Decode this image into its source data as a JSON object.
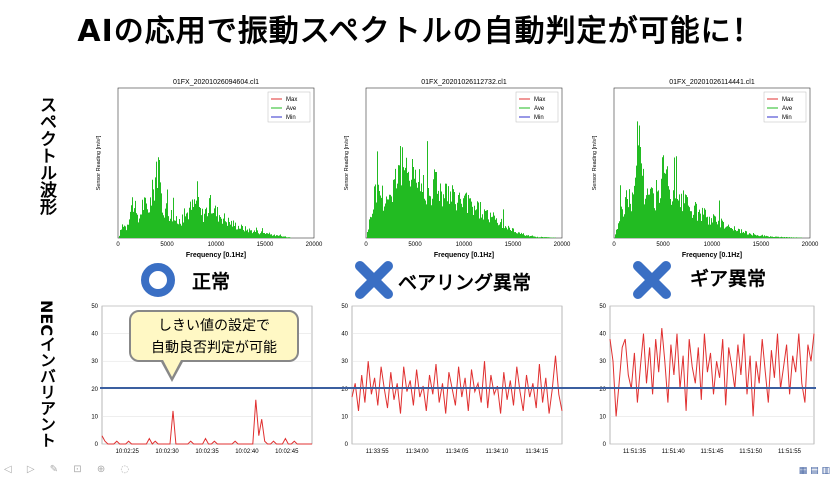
{
  "title": "AIの応用で振動スペクトルの自動判定が可能に！",
  "row_labels": {
    "spectrum": "スペクトル波形",
    "nec": "NECインバリアント"
  },
  "verdicts": [
    {
      "icon": "circle-icon",
      "label": "正常"
    },
    {
      "icon": "cross-icon",
      "label": "ベアリング異常"
    },
    {
      "icon": "cross-icon",
      "label": "ギア異常"
    }
  ],
  "callout": {
    "line1": "しきい値の設定で",
    "line2": "自動良否判定が可能"
  },
  "colors": {
    "max": "#e03030",
    "ave": "#22bb22",
    "min": "#3030cc",
    "nec_line": "#e03030",
    "threshold": "#3b5fa0",
    "icon": "#3a6fc4"
  },
  "spectrum_charts": [
    {
      "title": "01FX_20201026094604.cl1",
      "xlabel": "Frequency [0.1Hz]",
      "ylabel": "Sensor Reading [m/s²]",
      "xticks": [
        "0",
        "5000",
        "10000",
        "15000",
        "20000"
      ],
      "legend": [
        "Max",
        "Ave",
        "Min"
      ]
    },
    {
      "title": "01FX_20201026112732.cl1",
      "xlabel": "Frequency [0.1Hz]",
      "ylabel": "Sensor Reading [m/s²]",
      "xticks": [
        "0",
        "5000",
        "10000",
        "15000",
        "20000"
      ],
      "legend": [
        "Max",
        "Ave",
        "Min"
      ]
    },
    {
      "title": "01FX_20201026114441.cl1",
      "xlabel": "Frequency [0.1Hz]",
      "ylabel": "Sensor Reading [m/s²]",
      "xticks": [
        "0",
        "5000",
        "10000",
        "15000",
        "20000"
      ],
      "legend": [
        "Max",
        "Ave",
        "Min"
      ]
    }
  ],
  "chart_data": [
    {
      "type": "line",
      "title": "01FX_20201026094604.cl1",
      "xlabel": "Frequency [0.1Hz]",
      "ylabel": "Sensor Reading [m/s²]",
      "xlim": [
        0,
        20000
      ],
      "ylim": [
        0,
        1
      ],
      "x": [
        0,
        500,
        800,
        1000,
        1500,
        2000,
        2500,
        3000,
        3300,
        3600,
        3900,
        4200,
        4500,
        5000,
        5500,
        6000,
        6500,
        7000,
        7500,
        8000,
        8500,
        9000,
        9500,
        10000,
        10500,
        11000,
        11500,
        12000,
        13000,
        14000,
        15000,
        16000,
        17000,
        18000,
        20000
      ],
      "series": [
        {
          "name": "Ave",
          "values": [
            0,
            0.12,
            0.08,
            0.15,
            0.3,
            0.12,
            0.28,
            0.22,
            0.3,
            0.38,
            0.6,
            0.45,
            0.25,
            0.22,
            0.18,
            0.12,
            0.15,
            0.2,
            0.24,
            0.28,
            0.18,
            0.22,
            0.26,
            0.2,
            0.18,
            0.14,
            0.12,
            0.1,
            0.07,
            0.05,
            0.04,
            0.02,
            0.01,
            0,
            0
          ]
        }
      ]
    },
    {
      "type": "line",
      "title": "01FX_20201026112732.cl1",
      "xlabel": "Frequency [0.1Hz]",
      "ylabel": "Sensor Reading [m/s²]",
      "xlim": [
        0,
        20000
      ],
      "ylim": [
        0,
        1
      ],
      "x": [
        0,
        500,
        1000,
        1500,
        2000,
        2500,
        3000,
        3500,
        4000,
        4500,
        5000,
        5500,
        6000,
        6500,
        7000,
        7500,
        8000,
        9000,
        10000,
        11000,
        12000,
        13000,
        14000,
        15000,
        16000,
        17000,
        20000
      ],
      "series": [
        {
          "name": "Ave",
          "values": [
            0,
            0.2,
            0.4,
            0.35,
            0.3,
            0.35,
            0.5,
            0.6,
            0.45,
            0.62,
            0.5,
            0.42,
            0.4,
            0.35,
            0.45,
            0.38,
            0.35,
            0.3,
            0.28,
            0.25,
            0.2,
            0.15,
            0.1,
            0.06,
            0.03,
            0.01,
            0
          ]
        }
      ]
    },
    {
      "type": "line",
      "title": "01FX_20201026114441.cl1",
      "xlabel": "Frequency [0.1Hz]",
      "ylabel": "Sensor Reading [m/s²]",
      "xlim": [
        0,
        20000
      ],
      "ylim": [
        0,
        1
      ],
      "x": [
        0,
        500,
        1000,
        1500,
        2000,
        2500,
        3000,
        3500,
        4000,
        4500,
        5000,
        5500,
        6000,
        6500,
        7000,
        8000,
        9000,
        10000,
        11000,
        12000,
        13000,
        14000,
        15000,
        16000,
        20000
      ],
      "series": [
        {
          "name": "Ave",
          "values": [
            0,
            0.15,
            0.25,
            0.35,
            0.28,
            0.95,
            0.4,
            0.3,
            0.35,
            0.3,
            0.55,
            0.4,
            0.3,
            0.25,
            0.28,
            0.22,
            0.18,
            0.15,
            0.12,
            0.08,
            0.05,
            0.03,
            0.02,
            0.01,
            0
          ]
        }
      ]
    },
    {
      "type": "line",
      "ylim": [
        0,
        50
      ],
      "yticks": [
        "0",
        "10",
        "20",
        "30",
        "40",
        "50"
      ],
      "xticks": [
        "10:02:25",
        "10:02:30",
        "10:02:35",
        "10:02:40",
        "10:02:45"
      ],
      "threshold": 20,
      "series": [
        {
          "values": [
            3,
            1,
            0,
            0,
            0,
            1,
            0,
            0,
            0,
            1,
            0,
            0,
            0,
            0,
            0,
            0,
            2,
            0,
            1,
            0,
            0,
            0,
            0,
            0,
            12,
            0,
            0,
            0,
            0,
            0,
            1,
            0,
            0,
            0,
            0,
            2,
            0,
            0,
            1,
            0,
            0,
            0,
            0,
            0,
            0,
            1,
            0,
            0,
            0,
            0,
            0,
            0,
            16,
            3,
            9,
            1,
            0,
            0,
            1,
            0,
            0,
            0,
            2,
            0,
            0,
            1,
            0,
            0,
            0,
            0,
            0,
            0
          ]
        }
      ]
    },
    {
      "type": "line",
      "ylim": [
        0,
        50
      ],
      "yticks": [
        "0",
        "10",
        "20",
        "30",
        "40",
        "50"
      ],
      "xticks": [
        "11:33:55",
        "11:34:00",
        "11:34:05",
        "11:34:10",
        "11:34:15"
      ],
      "threshold": 20,
      "series": [
        {
          "values": [
            17,
            22,
            12,
            25,
            15,
            30,
            18,
            24,
            14,
            28,
            20,
            13,
            26,
            16,
            22,
            11,
            28,
            19,
            23,
            14,
            27,
            17,
            21,
            12,
            25,
            18,
            29,
            15,
            22,
            11,
            26,
            20,
            14,
            28,
            17,
            24,
            12,
            27,
            19,
            22,
            15,
            30,
            13,
            25,
            18,
            21,
            11,
            26,
            16,
            23,
            14,
            28,
            19,
            12,
            25,
            17,
            22,
            13,
            29,
            15,
            24,
            11,
            20,
            32,
            18,
            12
          ]
        }
      ]
    },
    {
      "type": "line",
      "ylim": [
        0,
        50
      ],
      "yticks": [
        "0",
        "10",
        "20",
        "30",
        "40",
        "50"
      ],
      "xticks": [
        "11:51:35",
        "11:51:40",
        "11:51:45",
        "11:51:50",
        "11:51:55"
      ],
      "threshold": 20,
      "series": [
        {
          "values": [
            38,
            30,
            10,
            22,
            35,
            38,
            25,
            20,
            33,
            15,
            28,
            40,
            22,
            35,
            18,
            38,
            26,
            42,
            30,
            15,
            36,
            25,
            40,
            20,
            32,
            12,
            38,
            28,
            22,
            35,
            16,
            40,
            26,
            33,
            18,
            30,
            24,
            38,
            14,
            35,
            28,
            20,
            36,
            25,
            40,
            18,
            32,
            10,
            30,
            22,
            38,
            26,
            15,
            34,
            24,
            40,
            20,
            28,
            36,
            18,
            32,
            26,
            40,
            22,
            15,
            36,
            30,
            40
          ]
        }
      ]
    }
  ]
}
